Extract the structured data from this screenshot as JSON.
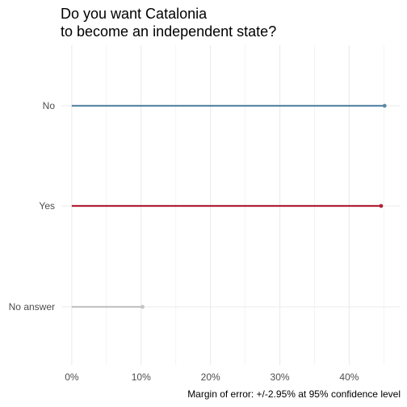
{
  "chart_data": {
    "type": "lollipop",
    "title_lines": [
      "Do you want Catalonia",
      "to become an independent state?"
    ],
    "categories": [
      "No",
      "Yes",
      "No answer"
    ],
    "values": [
      45.1,
      44.6,
      10.2
    ],
    "colors": [
      "#5b8aa6",
      "#b02336",
      "#c4c4c4"
    ],
    "x_ticks": [
      "0%",
      "10%",
      "20%",
      "30%",
      "40%"
    ],
    "x_tick_values": [
      0,
      10,
      20,
      30,
      40
    ],
    "xlim": [
      -1.5,
      47.4
    ],
    "grid": true,
    "caption": "Margin of error: +/-2.95% at 95% confidence level"
  }
}
